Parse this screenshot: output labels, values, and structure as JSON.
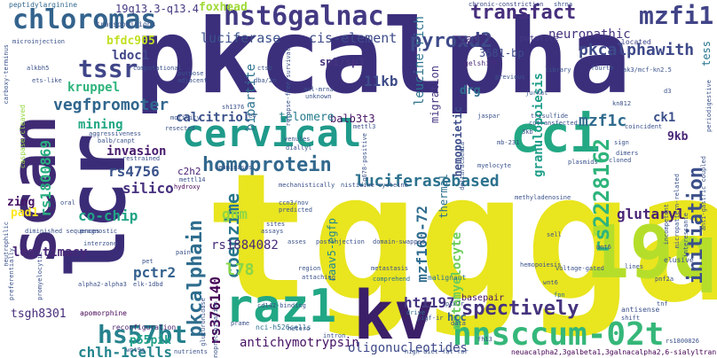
{
  "words": [
    {
      "id": "pkcalpha",
      "text": "pkcalpha",
      "color": "#3b2f7c"
    },
    {
      "id": "tggga",
      "text": "tggga",
      "color": "#e9e51f"
    },
    {
      "id": "lcr",
      "text": "lcr",
      "color": "#3b2c77"
    },
    {
      "id": "scan",
      "text": "scan",
      "color": "#3f2a73"
    },
    {
      "id": "19q",
      "text": "19q",
      "color": "#b5de2b"
    },
    {
      "id": "cci",
      "text": "cci",
      "color": "#23a884"
    },
    {
      "id": "cervical",
      "text": "cervical",
      "color": "#1f9a8a"
    },
    {
      "id": "kv",
      "text": "kv",
      "color": "#3b1f68"
    },
    {
      "id": "raz1",
      "text": "raz1",
      "color": "#22a785"
    },
    {
      "id": "hnsccum",
      "text": "hnsccum-02t",
      "color": "#35b779"
    },
    {
      "id": "hst6galnac",
      "text": "hst6galnac",
      "color": "#433a83"
    },
    {
      "id": "chloromas",
      "text": "chloromas",
      "color": "#33638d"
    },
    {
      "id": "homoprotein",
      "text": "homoprotein",
      "color": "#31688e"
    },
    {
      "id": "luciferasebased",
      "text": "luciferasebased",
      "color": "#2c728e"
    },
    {
      "id": "spectively",
      "text": "spectively",
      "color": "#45337d"
    },
    {
      "id": "pkcalphain",
      "text": "pkcalphain",
      "color": "#2e6d8e"
    },
    {
      "id": "initiation",
      "text": "initiation",
      "color": "#3c4f8a"
    },
    {
      "id": "mzfi1",
      "text": "mzfi1",
      "color": "#414487"
    },
    {
      "id": "pyroxd2",
      "text": "pyroxd2",
      "color": "#3e4a89"
    },
    {
      "id": "transfact",
      "text": "transfact",
      "color": "#472f7d"
    },
    {
      "id": "tssr",
      "text": "tssr",
      "color": "#404688"
    },
    {
      "id": "neuropathic",
      "text": "neuropathic",
      "color": "#46327e"
    },
    {
      "id": "hs57bt",
      "text": "hs57bt",
      "color": "#26818e"
    },
    {
      "id": "rs2228162",
      "text": "rs2228162",
      "color": "#2fb47c"
    },
    {
      "id": "pkcalphawith",
      "text": "pkcalphawith",
      "color": "#3e4989"
    },
    {
      "id": "luciferase",
      "text": "luciferase",
      "color": "#3b518b"
    },
    {
      "id": "ciselement",
      "text": "cis-element",
      "color": "#3e4b8a"
    },
    {
      "id": "rs1800869",
      "text": "rs1800869",
      "color": "#28ae80"
    },
    {
      "id": "coenzime",
      "text": "coenzime",
      "color": "#2a788e"
    },
    {
      "id": "mzf160",
      "text": "mzf160-72",
      "color": "#2f6c8e"
    },
    {
      "id": "chlh",
      "text": "chlh-1cells",
      "color": "#25858e"
    },
    {
      "id": "rs376140",
      "text": "rs376140",
      "color": "#440154"
    },
    {
      "id": "glutaryl",
      "text": "glutaryl",
      "color": "#482475"
    },
    {
      "id": "calcitriol",
      "text": "calcitriol",
      "color": "#3b528b"
    },
    {
      "id": "rs4756",
      "text": "rs4756",
      "color": "#3a538b"
    },
    {
      "id": "silico",
      "text": "silico",
      "color": "#46307e"
    },
    {
      "id": "11kb",
      "text": "11kb",
      "color": "#3e4c8a"
    },
    {
      "id": "invasion",
      "text": "invasion",
      "color": "#481b6d"
    },
    {
      "id": "vegfpromoter",
      "text": "vegfpromoter",
      "color": "#31668e"
    },
    {
      "id": "mzf1c",
      "text": "mzf1c",
      "color": "#2f6b8e"
    },
    {
      "id": "granulopoiesis",
      "text": "granulopoiesis",
      "color": "#1f9e89"
    },
    {
      "id": "cochip",
      "text": "co-chip",
      "color": "#20a386"
    },
    {
      "id": "l78",
      "text": "l78",
      "color": "#86d549"
    },
    {
      "id": "pctr2",
      "text": "pctr2",
      "color": "#34618d"
    },
    {
      "id": "legitimacy",
      "text": "legitimacy",
      "color": "#482777"
    },
    {
      "id": "gnm",
      "text": "gnm",
      "color": "#90d743"
    },
    {
      "id": "antichymo",
      "text": "antichymotrypsin",
      "color": "#471164"
    },
    {
      "id": "oligonucleotides",
      "text": "oligonucleotides",
      "color": "#3e4989"
    },
    {
      "id": "ht1197",
      "text": "ht1197",
      "color": "#453781"
    },
    {
      "id": "rs1884082",
      "text": "rs1884082",
      "color": "#472a7a"
    },
    {
      "id": "ldoc1",
      "text": "ldoc1",
      "color": "#404588"
    },
    {
      "id": "bfdc905",
      "text": "bfdc905",
      "color": "#c2df23"
    },
    {
      "id": "kruppel",
      "text": "kruppel",
      "color": "#2fb47c"
    },
    {
      "id": "mining",
      "text": "mining",
      "color": "#22a884"
    },
    {
      "id": "foxhead",
      "text": "foxhead",
      "color": "#a0da39"
    },
    {
      "id": "19q13",
      "text": "19q13.3-q13.4",
      "color": "#443a83"
    },
    {
      "id": "leucinerich",
      "text": "leucine-rich",
      "color": "#2c738e"
    },
    {
      "id": "hemopoietic",
      "text": "hemopoietic",
      "color": "#3d4e8a"
    },
    {
      "id": "metamyelocyte",
      "text": "metamyelocyte",
      "color": "#6ccd5a"
    },
    {
      "id": "raav5",
      "text": "raav5-egfp",
      "color": "#23888e"
    },
    {
      "id": "sp1sp3",
      "text": "sp1/sp3",
      "color": "#46337f"
    },
    {
      "id": "balb3t3",
      "text": "balb3t3",
      "color": "#471365"
    },
    {
      "id": "telomere",
      "text": "telomere",
      "color": "#287c8e"
    },
    {
      "id": "padi1",
      "text": "padi1",
      "color": "#472d7b"
    },
    {
      "id": "3681bp",
      "text": "3681-bp",
      "color": "#3d4d8a"
    },
    {
      "id": "drg",
      "text": "drg",
      "color": "#2e6e8e"
    },
    {
      "id": "bipartite",
      "text": "bipartite",
      "color": "#2c718e"
    },
    {
      "id": "9kb",
      "text": "9kb",
      "color": "#482677"
    },
    {
      "id": "ck1",
      "text": "ck1",
      "color": "#3c508b"
    },
    {
      "id": "tess",
      "text": "tess",
      "color": "#2a768e"
    },
    {
      "id": "tsgh8301",
      "text": "tsgh8301",
      "color": "#472c7a"
    },
    {
      "id": "p55pik",
      "text": "p55pik",
      "color": "#1fa088"
    },
    {
      "id": "zing",
      "text": "zing",
      "color": "#481467"
    },
    {
      "id": "pad1",
      "text": "pad1",
      "color": "#fde725"
    },
    {
      "id": "migration",
      "text": "migration",
      "color": "#463480"
    },
    {
      "id": "thermal",
      "text": "thermal",
      "color": "#2d708e"
    },
    {
      "id": "hcc",
      "text": "hcc",
      "color": "#33638d"
    },
    {
      "id": "basepair",
      "text": "basepair",
      "color": "#471063"
    },
    {
      "id": "c2h2",
      "text": "c2h2",
      "color": "#481f70"
    },
    {
      "id": "peptidylarginine",
      "text": "peptidylarginine",
      "color": "#31688e"
    },
    {
      "id": "caspasecleaved",
      "text": "caspase-cleaved",
      "color": "#93d741"
    },
    {
      "id": "chronic",
      "text": "chronic-constriction",
      "color": "#3e4a89"
    },
    {
      "id": "putative",
      "text": "putative",
      "color": "#453882"
    },
    {
      "id": "located",
      "text": "located",
      "color": "#3f4788"
    },
    {
      "id": "gelshift",
      "text": "gelshift",
      "color": "#4b2b7a"
    },
    {
      "id": "neuacalpha",
      "text": "neuacalpha2,3galbeta1,3galnacalpha2,6-sialyltransferase",
      "color": "#440154"
    },
    {
      "id": "nci",
      "text": "nci-h526cells",
      "color": "#2d708e"
    },
    {
      "id": "reconfig",
      "text": "reconfiguration",
      "color": "#481f70"
    },
    {
      "id": "apomorphine",
      "text": "apomorphine",
      "color": "#440154"
    },
    {
      "id": "transpositions",
      "text": "transpositions",
      "color": "#3b528b"
    },
    {
      "id": "microinjection",
      "text": "microinjection",
      "color": "#3b528b"
    },
    {
      "id": "antisense",
      "text": "antisense",
      "color": "#3b518b"
    },
    {
      "id": "elusive",
      "text": "elusive",
      "color": "#3b528b"
    },
    {
      "id": "malignant",
      "text": "malignant",
      "color": "#2c728e"
    },
    {
      "id": "metastasis",
      "text": "metastasis",
      "color": "#3b528b"
    },
    {
      "id": "comprehend",
      "text": "comprehend",
      "color": "#2c728e"
    },
    {
      "id": "drive",
      "text": "drive",
      "color": "#2c728e"
    },
    {
      "id": "hemopoiesis",
      "text": "hemopoiesis",
      "color": "#3b528b"
    },
    {
      "id": "lines",
      "text": "lines",
      "color": "#3b528b"
    },
    {
      "id": "fpn",
      "text": "fpn",
      "color": "#2c728e"
    },
    {
      "id": "sell",
      "text": "sell",
      "color": "#3b528b"
    },
    {
      "id": "shift",
      "text": "shift",
      "color": "#3b528b"
    },
    {
      "id": "fh13",
      "text": "fh13",
      "color": "#3b528b"
    },
    {
      "id": "region",
      "text": "region",
      "color": "#3b528b"
    },
    {
      "id": "attaching",
      "text": "attaching",
      "color": "#3b528b"
    },
    {
      "id": "domainswap",
      "text": "domain-swapped",
      "color": "#3b528b"
    },
    {
      "id": "postinjection",
      "text": "postinjection",
      "color": "#3b528b"
    },
    {
      "id": "predicted",
      "text": "predicted",
      "color": "#3b528b"
    },
    {
      "id": "sites",
      "text": "sites",
      "color": "#3b528b"
    },
    {
      "id": "assays",
      "text": "assays",
      "color": "#3b528b"
    },
    {
      "id": "asses",
      "text": "asses",
      "color": "#3b528b"
    },
    {
      "id": "hydroxy",
      "text": "hydroxy",
      "color": "#440154"
    },
    {
      "id": "restrained",
      "text": "restrained",
      "color": "#3b528b"
    },
    {
      "id": "deaminases",
      "text": "deaminases",
      "color": "#3b528b"
    },
    {
      "id": "venules",
      "text": "venules",
      "color": "#3b528b"
    },
    {
      "id": "diallyl",
      "text": "diallyl",
      "color": "#3b528b"
    },
    {
      "id": "jaspar",
      "text": "jaspar",
      "color": "#3b528b"
    },
    {
      "id": "coincident",
      "text": "coincident",
      "color": "#3b528b"
    },
    {
      "id": "3kb",
      "text": "3kb",
      "color": "#3b528b"
    },
    {
      "id": "sign",
      "text": "sign",
      "color": "#3b528b"
    },
    {
      "id": "dimers",
      "text": "dimers",
      "color": "#3b528b"
    },
    {
      "id": "cloned",
      "text": "cloned",
      "color": "#3b528b"
    },
    {
      "id": "library",
      "text": "library",
      "color": "#3b528b"
    },
    {
      "id": "fourth",
      "text": "fourth",
      "color": "#3b528b"
    },
    {
      "id": "aggressiveness",
      "text": "aggressiveness",
      "color": "#3b528b"
    },
    {
      "id": "computational",
      "text": "computational",
      "color": "#3b528b"
    },
    {
      "id": "purpose",
      "text": "purpose",
      "color": "#3b528b"
    },
    {
      "id": "adjacent",
      "text": "adjacent",
      "color": "#3b528b"
    },
    {
      "id": "alkbh5",
      "text": "alkbh5",
      "color": "#3b528b"
    },
    {
      "id": "etslike",
      "text": "ets-like",
      "color": "#3b528b"
    },
    {
      "id": "diminished",
      "text": "diminished sequences",
      "color": "#3b528b"
    },
    {
      "id": "oral",
      "text": "oral",
      "color": "#3b528b"
    },
    {
      "id": "prognostic",
      "text": "prognostic",
      "color": "#3b528b"
    },
    {
      "id": "interzone",
      "text": "interzone",
      "color": "#3b528b"
    },
    {
      "id": "pain",
      "text": "pain",
      "color": "#3b528b"
    },
    {
      "id": "pet",
      "text": "pet",
      "color": "#3b528b"
    },
    {
      "id": "alpha2",
      "text": "alpha2-alpha3",
      "color": "#3b528b"
    },
    {
      "id": "elk1dbd",
      "text": "elk-1dbd",
      "color": "#3b528b"
    },
    {
      "id": "prame",
      "text": "prame",
      "color": "#3b528b"
    },
    {
      "id": "hetero",
      "text": "hetero",
      "color": "#3b528b"
    },
    {
      "id": "data",
      "text": "data",
      "color": "#3b528b"
    },
    {
      "id": "pigfir",
      "text": "pigf-ir",
      "color": "#3b528b"
    },
    {
      "id": "p2x7r",
      "text": "p2x7r",
      "color": "#3b528b"
    },
    {
      "id": "wnt6",
      "text": "wnt6",
      "color": "#3b528b"
    },
    {
      "id": "kn812",
      "text": "kn812",
      "color": "#3b528b"
    },
    {
      "id": "d3",
      "text": "d3",
      "color": "#3b528b"
    },
    {
      "id": "ctsb",
      "text": "ctsb",
      "color": "#3b528b"
    },
    {
      "id": "dba2n",
      "text": "dba/2n",
      "color": "#3b528b"
    },
    {
      "id": "axlmrna",
      "text": "axl-mrna",
      "color": "#3b528b"
    },
    {
      "id": "unknown",
      "text": "unknown",
      "color": "#3b528b"
    },
    {
      "id": "mb231",
      "text": "mb-231",
      "color": "#3b528b"
    },
    {
      "id": "mettl4",
      "text": "mettl14",
      "color": "#3b528b"
    },
    {
      "id": "ccn3nov",
      "text": "ccn3/nov",
      "color": "#3b528b"
    },
    {
      "id": "sh1376",
      "text": "sh1376",
      "color": "#3b528b"
    },
    {
      "id": "jurkat",
      "text": "jurkat",
      "color": "#3b528b"
    },
    {
      "id": "previous",
      "text": "previous",
      "color": "#3b528b"
    },
    {
      "id": "shrna",
      "text": "shrna",
      "color": "#3b528b"
    },
    {
      "id": "trisulfide",
      "text": "trisulfide",
      "color": "#3b528b"
    },
    {
      "id": "cotransfected",
      "text": "cotransfected",
      "color": "#3b528b"
    },
    {
      "id": "mettl3",
      "text": "mettl3",
      "color": "#3b528b"
    },
    {
      "id": "myelocyte",
      "text": "myelocyte",
      "color": "#3b528b"
    },
    {
      "id": "plasmids",
      "text": "plasmids",
      "color": "#3b528b"
    },
    {
      "id": "voltagegated",
      "text": "voltage-gated",
      "color": "#3b528b"
    },
    {
      "id": "mnt6",
      "text": "mnt6",
      "color": "#3b528b"
    },
    {
      "id": "pnf2a",
      "text": "pnf2a",
      "color": "#3b528b"
    },
    {
      "id": "highdiet",
      "text": "high-diet-fat-for",
      "color": "#3b528b"
    },
    {
      "id": "nutrients",
      "text": "nutrients",
      "color": "#3b528b"
    },
    {
      "id": "cd142",
      "text": "cd142-binding",
      "color": "#3b528b"
    },
    {
      "id": "nistidine",
      "text": "nistidine-cysteine",
      "color": "#3b528b"
    },
    {
      "id": "mechanistically",
      "text": "mechanistically",
      "color": "#3b528b"
    },
    {
      "id": "carboxyterminus",
      "text": "carboxy-terminus",
      "color": "#3b528b"
    },
    {
      "id": "balbcanpt",
      "text": "balb/canpt",
      "color": "#3b528b"
    },
    {
      "id": "e4",
      "text": "e4",
      "color": "#3b528b"
    },
    {
      "id": "motility",
      "text": "motility",
      "color": "#3b528b"
    },
    {
      "id": "resected",
      "text": "resected",
      "color": "#3b528b"
    },
    {
      "id": "relapsefree",
      "text": "relapse-free-survival",
      "color": "#3b528b"
    },
    {
      "id": "promyelocytic",
      "text": "promyelocytic",
      "color": "#3b528b"
    },
    {
      "id": "preferentially",
      "text": "preferentially",
      "color": "#3b528b"
    },
    {
      "id": "neutrophilic",
      "text": "neutrophilic",
      "color": "#3b528b"
    },
    {
      "id": "wnt9a",
      "text": "wnt9a",
      "color": "#3b528b"
    },
    {
      "id": "glucuronidase",
      "text": "glucuronidase",
      "color": "#3b528b"
    },
    {
      "id": "immunoprecip",
      "text": "immunoprecipitation",
      "color": "#3b528b"
    },
    {
      "id": "intron",
      "text": "intron",
      "color": "#3b528b"
    },
    {
      "id": "deltaracaemia",
      "text": "deltaracaemia",
      "color": "#3b528b"
    },
    {
      "id": "g678",
      "text": "g678-positive",
      "color": "#3b528b"
    },
    {
      "id": "incompetent",
      "text": "incompetent",
      "color": "#3b528b"
    },
    {
      "id": "micropattern",
      "text": "micropattern-related",
      "color": "#3b528b"
    },
    {
      "id": "interessante",
      "text": "interessante",
      "color": "#3b528b"
    },
    {
      "id": "antigastric",
      "text": "anti-gastric coupled",
      "color": "#3b528b"
    },
    {
      "id": "periodigestive",
      "text": "periodigestive",
      "color": "#3b528b"
    },
    {
      "id": "tnf",
      "text": "tnf",
      "color": "#3b528b"
    },
    {
      "id": "methyladenosine",
      "text": "methyladenosine",
      "color": "#3b528b"
    },
    {
      "id": "rs1800826",
      "text": "rs1800826",
      "color": "#3b528b"
    },
    {
      "id": "ak3mcfkn",
      "text": "ak3/mcf-kn2.5",
      "color": "#3b528b"
    }
  ]
}
